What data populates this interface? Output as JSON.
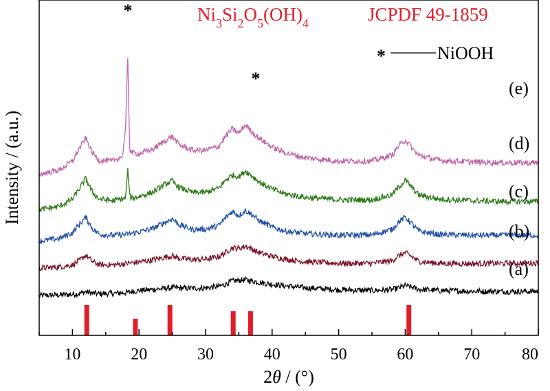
{
  "chart_data": {
    "type": "line",
    "xlabel_prefix": "2",
    "xlabel_var": "θ",
    "xlabel_suffix": " / (°)",
    "ylabel": "Intensity / (a.u.)",
    "xlim": [
      5,
      80
    ],
    "xticks": [
      10,
      20,
      30,
      40,
      50,
      60,
      70,
      80
    ],
    "y_ticks_shown": false,
    "grid": false,
    "legend": "none",
    "annotations": {
      "reference_phase": {
        "base": "Ni",
        "sub1": "3",
        "mid1": "Si",
        "sub2": "2",
        "mid2": "O",
        "sub3": "5",
        "tail": "(OH)",
        "sub4": "4"
      },
      "reference_card": "JCPDF 49-1859",
      "marker_symbol": "*",
      "marker_label": "NiOOH"
    },
    "reference_peaks": [
      {
        "x": 12.1,
        "rel_height": 1.0
      },
      {
        "x": 19.4,
        "rel_height": 0.55
      },
      {
        "x": 24.6,
        "rel_height": 1.0
      },
      {
        "x": 34.1,
        "rel_height": 0.8
      },
      {
        "x": 36.7,
        "rel_height": 0.8
      },
      {
        "x": 60.5,
        "rel_height": 1.0
      }
    ],
    "series": [
      {
        "name": "(a)",
        "color": "#000000",
        "offset": 0.0,
        "x": [
          5,
          8,
          10,
          11,
          12,
          13,
          14,
          16,
          18,
          20,
          22,
          24,
          25,
          26,
          28,
          30,
          32,
          33,
          34,
          35,
          36,
          37,
          38,
          40,
          42,
          45,
          50,
          55,
          58,
          59,
          60,
          61,
          62,
          65,
          70,
          75,
          80
        ],
        "y": [
          0.0,
          0.03,
          0.07,
          0.12,
          0.22,
          0.14,
          0.1,
          0.12,
          0.17,
          0.3,
          0.36,
          0.43,
          0.47,
          0.45,
          0.44,
          0.46,
          0.55,
          0.68,
          0.87,
          0.92,
          0.94,
          0.88,
          0.8,
          0.68,
          0.58,
          0.47,
          0.35,
          0.3,
          0.35,
          0.45,
          0.6,
          0.5,
          0.38,
          0.3,
          0.26,
          0.24,
          0.25
        ]
      },
      {
        "name": "(b)",
        "color": "#7a1224",
        "offset": 1.65,
        "x": [
          5,
          8,
          10,
          11,
          12,
          13,
          14,
          16,
          18,
          20,
          22,
          24,
          25,
          26,
          28,
          30,
          32,
          33,
          34,
          35,
          36,
          37,
          38,
          40,
          42,
          45,
          50,
          55,
          58,
          59,
          60,
          61,
          62,
          65,
          70,
          75,
          80
        ],
        "y": [
          0.0,
          0.08,
          0.2,
          0.45,
          0.8,
          0.4,
          0.22,
          0.2,
          0.28,
          0.38,
          0.5,
          0.68,
          0.75,
          0.6,
          0.52,
          0.55,
          0.7,
          0.95,
          1.25,
          1.2,
          1.35,
          1.15,
          0.95,
          0.72,
          0.55,
          0.4,
          0.3,
          0.3,
          0.45,
          0.75,
          0.95,
          0.7,
          0.42,
          0.3,
          0.28,
          0.3,
          0.32
        ]
      },
      {
        "name": "(c)",
        "color": "#1f51a6",
        "offset": 3.3,
        "x": [
          5,
          8,
          10,
          11,
          12,
          13,
          14,
          16,
          18,
          20,
          22,
          24,
          25,
          26,
          28,
          30,
          32,
          33,
          34,
          35,
          36,
          37,
          38,
          40,
          42,
          45,
          50,
          55,
          58,
          59,
          60,
          61,
          62,
          65,
          70,
          75,
          80
        ],
        "y": [
          0.0,
          0.15,
          0.5,
          1.0,
          1.45,
          0.75,
          0.42,
          0.35,
          0.4,
          0.55,
          0.75,
          1.15,
          1.35,
          1.0,
          0.7,
          0.72,
          0.95,
          1.4,
          1.8,
          1.55,
          1.85,
          1.6,
          1.25,
          0.85,
          0.6,
          0.45,
          0.35,
          0.38,
          0.7,
          1.15,
          1.45,
          1.05,
          0.6,
          0.4,
          0.35,
          0.35,
          0.35
        ]
      },
      {
        "name": "(d)",
        "color": "#2b7a18",
        "offset": 5.2,
        "x": [
          5,
          8,
          10,
          11,
          12,
          13,
          14,
          16,
          18,
          18.3,
          18.6,
          19,
          20,
          22,
          24,
          25,
          26,
          28,
          30,
          32,
          33,
          34,
          35,
          36,
          37,
          38,
          40,
          42,
          45,
          50,
          55,
          58,
          59,
          60,
          61,
          62,
          65,
          70,
          75,
          80
        ],
        "y": [
          0.0,
          0.2,
          0.65,
          1.25,
          1.9,
          1.05,
          0.65,
          0.55,
          0.7,
          2.5,
          0.8,
          0.7,
          0.8,
          1.05,
          1.55,
          1.75,
          1.35,
          1.05,
          1.05,
          1.3,
          1.8,
          2.1,
          2.0,
          2.35,
          2.05,
          1.7,
          1.25,
          0.95,
          0.75,
          0.6,
          0.6,
          0.9,
          1.35,
          1.8,
          1.35,
          0.9,
          0.65,
          0.55,
          0.5,
          0.5
        ]
      },
      {
        "name": "(e)",
        "color": "#c065a8",
        "offset": 7.35,
        "x": [
          5,
          8,
          10,
          11,
          12,
          13,
          14,
          16,
          17.5,
          18,
          18.3,
          18.6,
          19,
          20,
          22,
          24,
          25,
          26,
          28,
          30,
          32,
          33,
          34,
          35,
          36,
          37,
          38,
          40,
          42,
          45,
          50,
          55,
          58,
          59,
          60,
          61,
          62,
          65,
          70,
          75,
          80
        ],
        "y": [
          0.0,
          0.25,
          0.8,
          1.55,
          2.2,
          1.3,
          0.85,
          0.8,
          1.1,
          2.8,
          7.4,
          1.5,
          1.3,
          1.25,
          1.5,
          2.05,
          2.3,
          1.8,
          1.45,
          1.45,
          1.7,
          2.3,
          2.75,
          2.5,
          3.0,
          2.55,
          2.2,
          1.65,
          1.3,
          1.0,
          0.8,
          0.8,
          1.15,
          1.7,
          2.1,
          1.6,
          1.15,
          0.85,
          0.75,
          0.7,
          0.7
        ]
      }
    ]
  }
}
